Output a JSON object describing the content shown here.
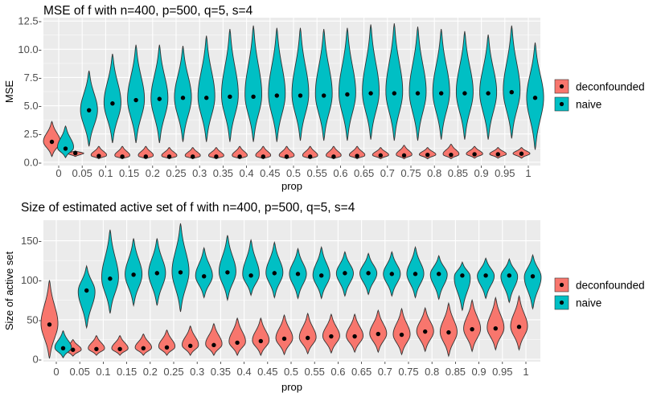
{
  "colors": {
    "deconfounded": "#F8766D",
    "naive": "#00BFC4",
    "panel": "#EBEBEB",
    "grid": "#FFFFFF"
  },
  "chart_data": [
    {
      "type": "violin",
      "title": "MSE of f with n=400, p=500, q=5, s=4",
      "xlabel": "prop",
      "ylabel": "MSE",
      "ylim": [
        -0.3,
        12.8
      ],
      "yticks": [
        0.0,
        2.5,
        5.0,
        7.5,
        10.0,
        12.5
      ],
      "ytick_labels": [
        "0.0-",
        "2.5-",
        "5.0-",
        "7.5-",
        "10.0-",
        "12.5-"
      ],
      "categories": [
        "0",
        "0.05",
        "0.1",
        "0.15",
        "0.2",
        "0.25",
        "0.3",
        "0.35",
        "0.4",
        "0.45",
        "0.5",
        "0.55",
        "0.6",
        "0.65",
        "0.7",
        "0.75",
        "0.8",
        "0.85",
        "0.9",
        "0.95",
        "1"
      ],
      "legend": [
        "deconfounded",
        "naive"
      ],
      "series": [
        {
          "name": "deconfounded",
          "means": [
            1.8,
            0.8,
            0.55,
            0.5,
            0.5,
            0.5,
            0.5,
            0.5,
            0.5,
            0.5,
            0.5,
            0.5,
            0.5,
            0.55,
            0.6,
            0.6,
            0.65,
            0.65,
            0.7,
            0.7,
            0.75
          ],
          "mins": [
            0.5,
            0.5,
            0.3,
            0.3,
            0.3,
            0.3,
            0.3,
            0.3,
            0.3,
            0.3,
            0.3,
            0.3,
            0.3,
            0.3,
            0.3,
            0.3,
            0.3,
            0.3,
            0.35,
            0.35,
            0.35
          ],
          "maxs": [
            3.6,
            1.0,
            1.4,
            1.4,
            1.4,
            1.3,
            1.3,
            1.3,
            1.4,
            1.4,
            1.4,
            1.4,
            1.4,
            1.4,
            1.3,
            1.5,
            1.3,
            1.6,
            1.4,
            1.3,
            1.3
          ]
        },
        {
          "name": "naive",
          "means": [
            1.2,
            4.6,
            5.2,
            5.5,
            5.6,
            5.7,
            5.7,
            5.8,
            5.8,
            5.9,
            5.9,
            5.9,
            6.0,
            6.1,
            6.1,
            6.1,
            6.1,
            6.1,
            6.1,
            6.2,
            5.7
          ],
          "mins": [
            0.4,
            1.4,
            1.7,
            1.7,
            1.7,
            1.8,
            1.8,
            1.8,
            1.8,
            1.8,
            1.9,
            1.9,
            1.9,
            2.0,
            1.9,
            1.9,
            2.0,
            2.0,
            2.0,
            2.1,
            1.1
          ],
          "maxs": [
            3.2,
            8.1,
            9.6,
            10.4,
            10.4,
            10.3,
            11.2,
            11.8,
            12.1,
            11.9,
            11.9,
            11.8,
            11.9,
            12.2,
            12.3,
            12.0,
            11.8,
            11.6,
            11.3,
            12.1,
            10.6
          ]
        }
      ]
    },
    {
      "type": "violin",
      "title": "Size of estimated active set of f with n=400, p=500, q=5, s=4",
      "xlabel": "prop",
      "ylabel": "Size of active set",
      "ylim": [
        -3,
        176
      ],
      "yticks": [
        0,
        50,
        100,
        150
      ],
      "ytick_labels": [
        "0-",
        "50-",
        "100-",
        "150-"
      ],
      "categories": [
        "0",
        "0.05",
        "0.1",
        "0.15",
        "0.2",
        "0.25",
        "0.3",
        "0.35",
        "0.4",
        "0.45",
        "0.5",
        "0.55",
        "0.6",
        "0.65",
        "0.7",
        "0.75",
        "0.8",
        "0.85",
        "0.9",
        "0.95",
        "1"
      ],
      "legend": [
        "deconfounded",
        "naive"
      ],
      "series": [
        {
          "name": "deconfounded",
          "means": [
            44,
            12,
            13,
            13,
            14,
            15,
            17,
            18,
            21,
            23,
            26,
            27,
            29,
            29,
            32,
            31,
            35,
            34,
            38,
            39,
            41
          ],
          "mins": [
            1,
            4,
            5,
            5,
            5,
            5,
            5,
            5,
            5,
            5,
            6,
            7,
            8,
            9,
            9,
            6,
            10,
            4,
            10,
            12,
            12
          ],
          "maxs": [
            100,
            25,
            30,
            30,
            32,
            37,
            42,
            45,
            52,
            52,
            56,
            58,
            57,
            57,
            62,
            64,
            65,
            71,
            75,
            78,
            80
          ]
        },
        {
          "name": "naive",
          "means": [
            14,
            87,
            102,
            107,
            109,
            110,
            105,
            110,
            106,
            109,
            108,
            106,
            109,
            109,
            108,
            108,
            108,
            106,
            106,
            106,
            105
          ],
          "mins": [
            2,
            40,
            58,
            68,
            68,
            60,
            78,
            75,
            81,
            78,
            77,
            77,
            80,
            82,
            80,
            78,
            76,
            62,
            77,
            72,
            64
          ],
          "maxs": [
            36,
            118,
            164,
            153,
            153,
            172,
            141,
            157,
            151,
            148,
            140,
            142,
            136,
            134,
            136,
            142,
            131,
            123,
            128,
            127,
            132
          ]
        }
      ]
    }
  ]
}
